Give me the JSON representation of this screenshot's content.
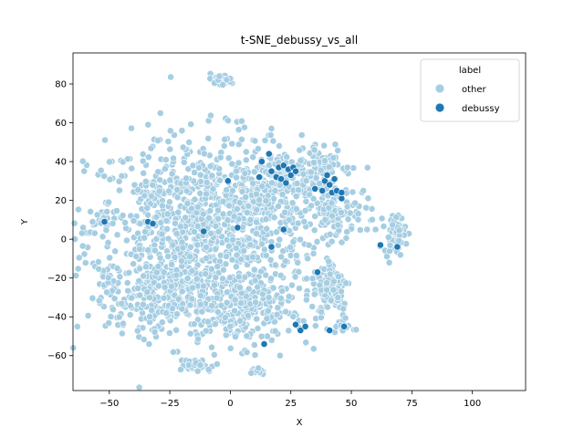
{
  "chart_data": {
    "type": "scatter",
    "title": "t-SNE_debussy_vs_all",
    "xlabel": "X",
    "ylabel": "Y",
    "xlim": [
      -65,
      122
    ],
    "ylim": [
      -78,
      96
    ],
    "xticks": [
      -50,
      -25,
      0,
      25,
      50,
      75,
      100
    ],
    "yticks": [
      -60,
      -40,
      -20,
      0,
      20,
      40,
      60,
      80
    ],
    "grid": false,
    "legend": {
      "title": "label",
      "placement": "top-right"
    },
    "series": [
      {
        "name": "other",
        "color": "#a6cee3",
        "clusters": [
          {
            "cx": -15,
            "cy": 5,
            "sx": 22,
            "sy": 24,
            "n": 900
          },
          {
            "cx": 20,
            "cy": 20,
            "sx": 14,
            "sy": 14,
            "n": 320
          },
          {
            "cx": 5,
            "cy": -35,
            "sx": 14,
            "sy": 10,
            "n": 260
          },
          {
            "cx": -30,
            "cy": -30,
            "sx": 10,
            "sy": 10,
            "n": 200
          },
          {
            "cx": 42,
            "cy": -25,
            "sx": 4,
            "sy": 9,
            "n": 90
          },
          {
            "cx": 38,
            "cy": 38,
            "sx": 6,
            "sy": 6,
            "n": 70
          },
          {
            "cx": 45,
            "cy": 15,
            "sx": 5,
            "sy": 6,
            "n": 60
          },
          {
            "cx": -4,
            "cy": 82,
            "sx": 3,
            "sy": 1.5,
            "n": 40
          },
          {
            "cx": 68,
            "cy": 3,
            "sx": 2.2,
            "sy": 5,
            "n": 60
          },
          {
            "cx": -13,
            "cy": -65,
            "sx": 4,
            "sy": 2,
            "n": 30
          },
          {
            "cx": 11,
            "cy": -68,
            "sx": 2,
            "sy": 1,
            "n": 10
          },
          {
            "cx": -52,
            "cy": 8,
            "sx": 2,
            "sy": 3,
            "n": 15
          },
          {
            "cx": -52,
            "cy": -20,
            "sx": 2,
            "sy": 4,
            "n": 15
          },
          {
            "cx": 47,
            "cy": -46,
            "sx": 2,
            "sy": 1,
            "n": 10
          }
        ],
        "points": [
          [
            -20,
            56
          ],
          [
            17,
            57
          ],
          [
            60,
            5
          ]
        ]
      },
      {
        "name": "debussy",
        "color": "#1f78b4",
        "points": [
          [
            -52,
            9
          ],
          [
            -34,
            9
          ],
          [
            -32,
            8
          ],
          [
            -11,
            4
          ],
          [
            -1,
            30
          ],
          [
            3,
            6
          ],
          [
            12,
            32
          ],
          [
            13,
            40
          ],
          [
            16,
            44
          ],
          [
            17,
            35
          ],
          [
            19,
            32
          ],
          [
            20,
            37
          ],
          [
            21,
            31
          ],
          [
            22,
            38
          ],
          [
            23,
            29
          ],
          [
            24,
            36
          ],
          [
            25,
            33
          ],
          [
            26,
            37
          ],
          [
            27,
            35
          ],
          [
            22,
            5
          ],
          [
            17,
            -4
          ],
          [
            36,
            -17
          ],
          [
            35,
            26
          ],
          [
            38,
            25
          ],
          [
            39,
            30
          ],
          [
            40,
            33
          ],
          [
            41,
            28
          ],
          [
            42,
            24
          ],
          [
            43,
            31
          ],
          [
            44,
            25
          ],
          [
            46,
            21
          ],
          [
            46,
            24
          ],
          [
            62,
            -3
          ],
          [
            69,
            -4
          ],
          [
            27,
            -44
          ],
          [
            29,
            -47
          ],
          [
            31,
            -45
          ],
          [
            41,
            -47
          ],
          [
            47,
            -45
          ],
          [
            14,
            -54
          ]
        ]
      }
    ]
  }
}
